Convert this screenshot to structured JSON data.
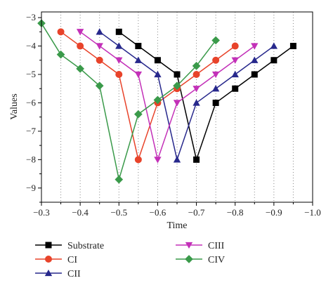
{
  "chart_data": {
    "type": "line",
    "xlabel": "Time",
    "ylabel": "Values",
    "xlim": [
      -0.3,
      -1.0
    ],
    "ylim": [
      -9.5,
      -2.8
    ],
    "x_ticks": [
      -0.3,
      -0.4,
      -0.5,
      -0.6,
      -0.7,
      -0.8,
      -0.9,
      -1.0
    ],
    "x_tick_labels": [
      "−0.3",
      "−0.4",
      "−0.5",
      "−0.6",
      "−0.7",
      "−0.8",
      "−0.9",
      "−1.0"
    ],
    "y_ticks": [
      -3,
      -4,
      -5,
      -6,
      -7,
      -8,
      -9
    ],
    "y_tick_labels": [
      "−3",
      "−4",
      "−5",
      "−6",
      "−7",
      "−8",
      "−9"
    ],
    "vertical_gridlines": "dotted, every 0.05",
    "legend_position": "bottom, two columns",
    "series": [
      {
        "name": "Substrate",
        "color": "#000000",
        "marker": "square",
        "x": [
          -0.5,
          -0.55,
          -0.6,
          -0.65,
          -0.7,
          -0.75,
          -0.8,
          -0.85,
          -0.9,
          -0.95
        ],
        "y": [
          -3.5,
          -4.0,
          -4.5,
          -5.0,
          -8.0,
          -6.0,
          -5.5,
          -5.0,
          -4.5,
          -4.0
        ]
      },
      {
        "name": "CI",
        "color": "#e8432a",
        "marker": "circle",
        "x": [
          -0.35,
          -0.4,
          -0.45,
          -0.5,
          -0.55,
          -0.6,
          -0.65,
          -0.7,
          -0.75,
          -0.8
        ],
        "y": [
          -3.5,
          -4.0,
          -4.5,
          -5.0,
          -8.0,
          -6.0,
          -5.5,
          -5.0,
          -4.5,
          -4.0
        ]
      },
      {
        "name": "CII",
        "color": "#27288c",
        "marker": "triangle-up",
        "x": [
          -0.45,
          -0.5,
          -0.55,
          -0.6,
          -0.65,
          -0.7,
          -0.75,
          -0.8,
          -0.85,
          -0.9
        ],
        "y": [
          -3.5,
          -4.0,
          -4.5,
          -5.0,
          -8.0,
          -6.0,
          -5.5,
          -5.0,
          -4.5,
          -4.0
        ]
      },
      {
        "name": "CIII",
        "color": "#c330b8",
        "marker": "triangle-down",
        "x": [
          -0.4,
          -0.45,
          -0.5,
          -0.55,
          -0.6,
          -0.65,
          -0.7,
          -0.75,
          -0.8,
          -0.85
        ],
        "y": [
          -3.5,
          -4.0,
          -4.5,
          -5.0,
          -8.0,
          -6.0,
          -5.5,
          -5.0,
          -4.5,
          -4.0
        ]
      },
      {
        "name": "CIV",
        "color": "#3a9a4a",
        "marker": "diamond",
        "x": [
          -0.3,
          -0.35,
          -0.4,
          -0.45,
          -0.5,
          -0.55,
          -0.6,
          -0.65,
          -0.7,
          -0.75
        ],
        "y": [
          -3.2,
          -4.3,
          -4.8,
          -5.4,
          -8.7,
          -6.4,
          -5.9,
          -5.4,
          -4.7,
          -3.8
        ]
      }
    ]
  }
}
